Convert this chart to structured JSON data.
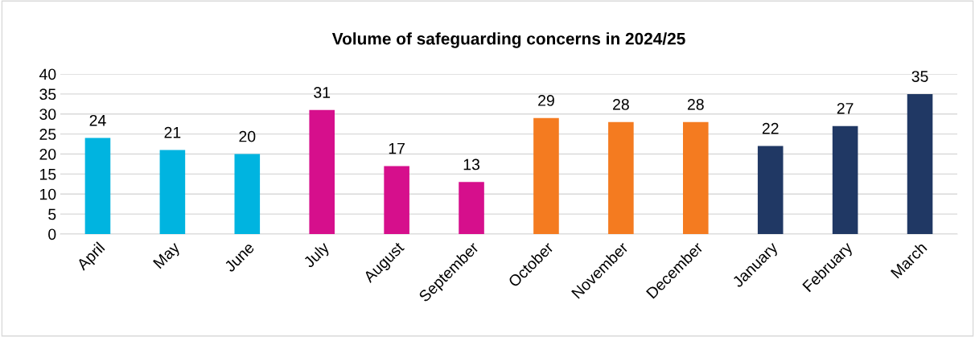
{
  "chart_data": {
    "type": "bar",
    "title": "Volume of safeguarding concerns in 2024/25",
    "categories": [
      "April",
      "May",
      "June",
      "July",
      "August",
      "September",
      "October",
      "November",
      "December",
      "January",
      "February",
      "March"
    ],
    "values": [
      24,
      21,
      20,
      31,
      17,
      13,
      29,
      28,
      28,
      22,
      27,
      35
    ],
    "colors": [
      "#00b4e0",
      "#00b4e0",
      "#00b4e0",
      "#d60f8c",
      "#d60f8c",
      "#d60f8c",
      "#f47b20",
      "#f47b20",
      "#f47b20",
      "#203864",
      "#203864",
      "#203864"
    ],
    "ylim": [
      0,
      40
    ],
    "yticks": [
      0,
      5,
      10,
      15,
      20,
      25,
      30,
      35,
      40
    ],
    "grid": "y",
    "data_labels": true,
    "legend": false
  }
}
